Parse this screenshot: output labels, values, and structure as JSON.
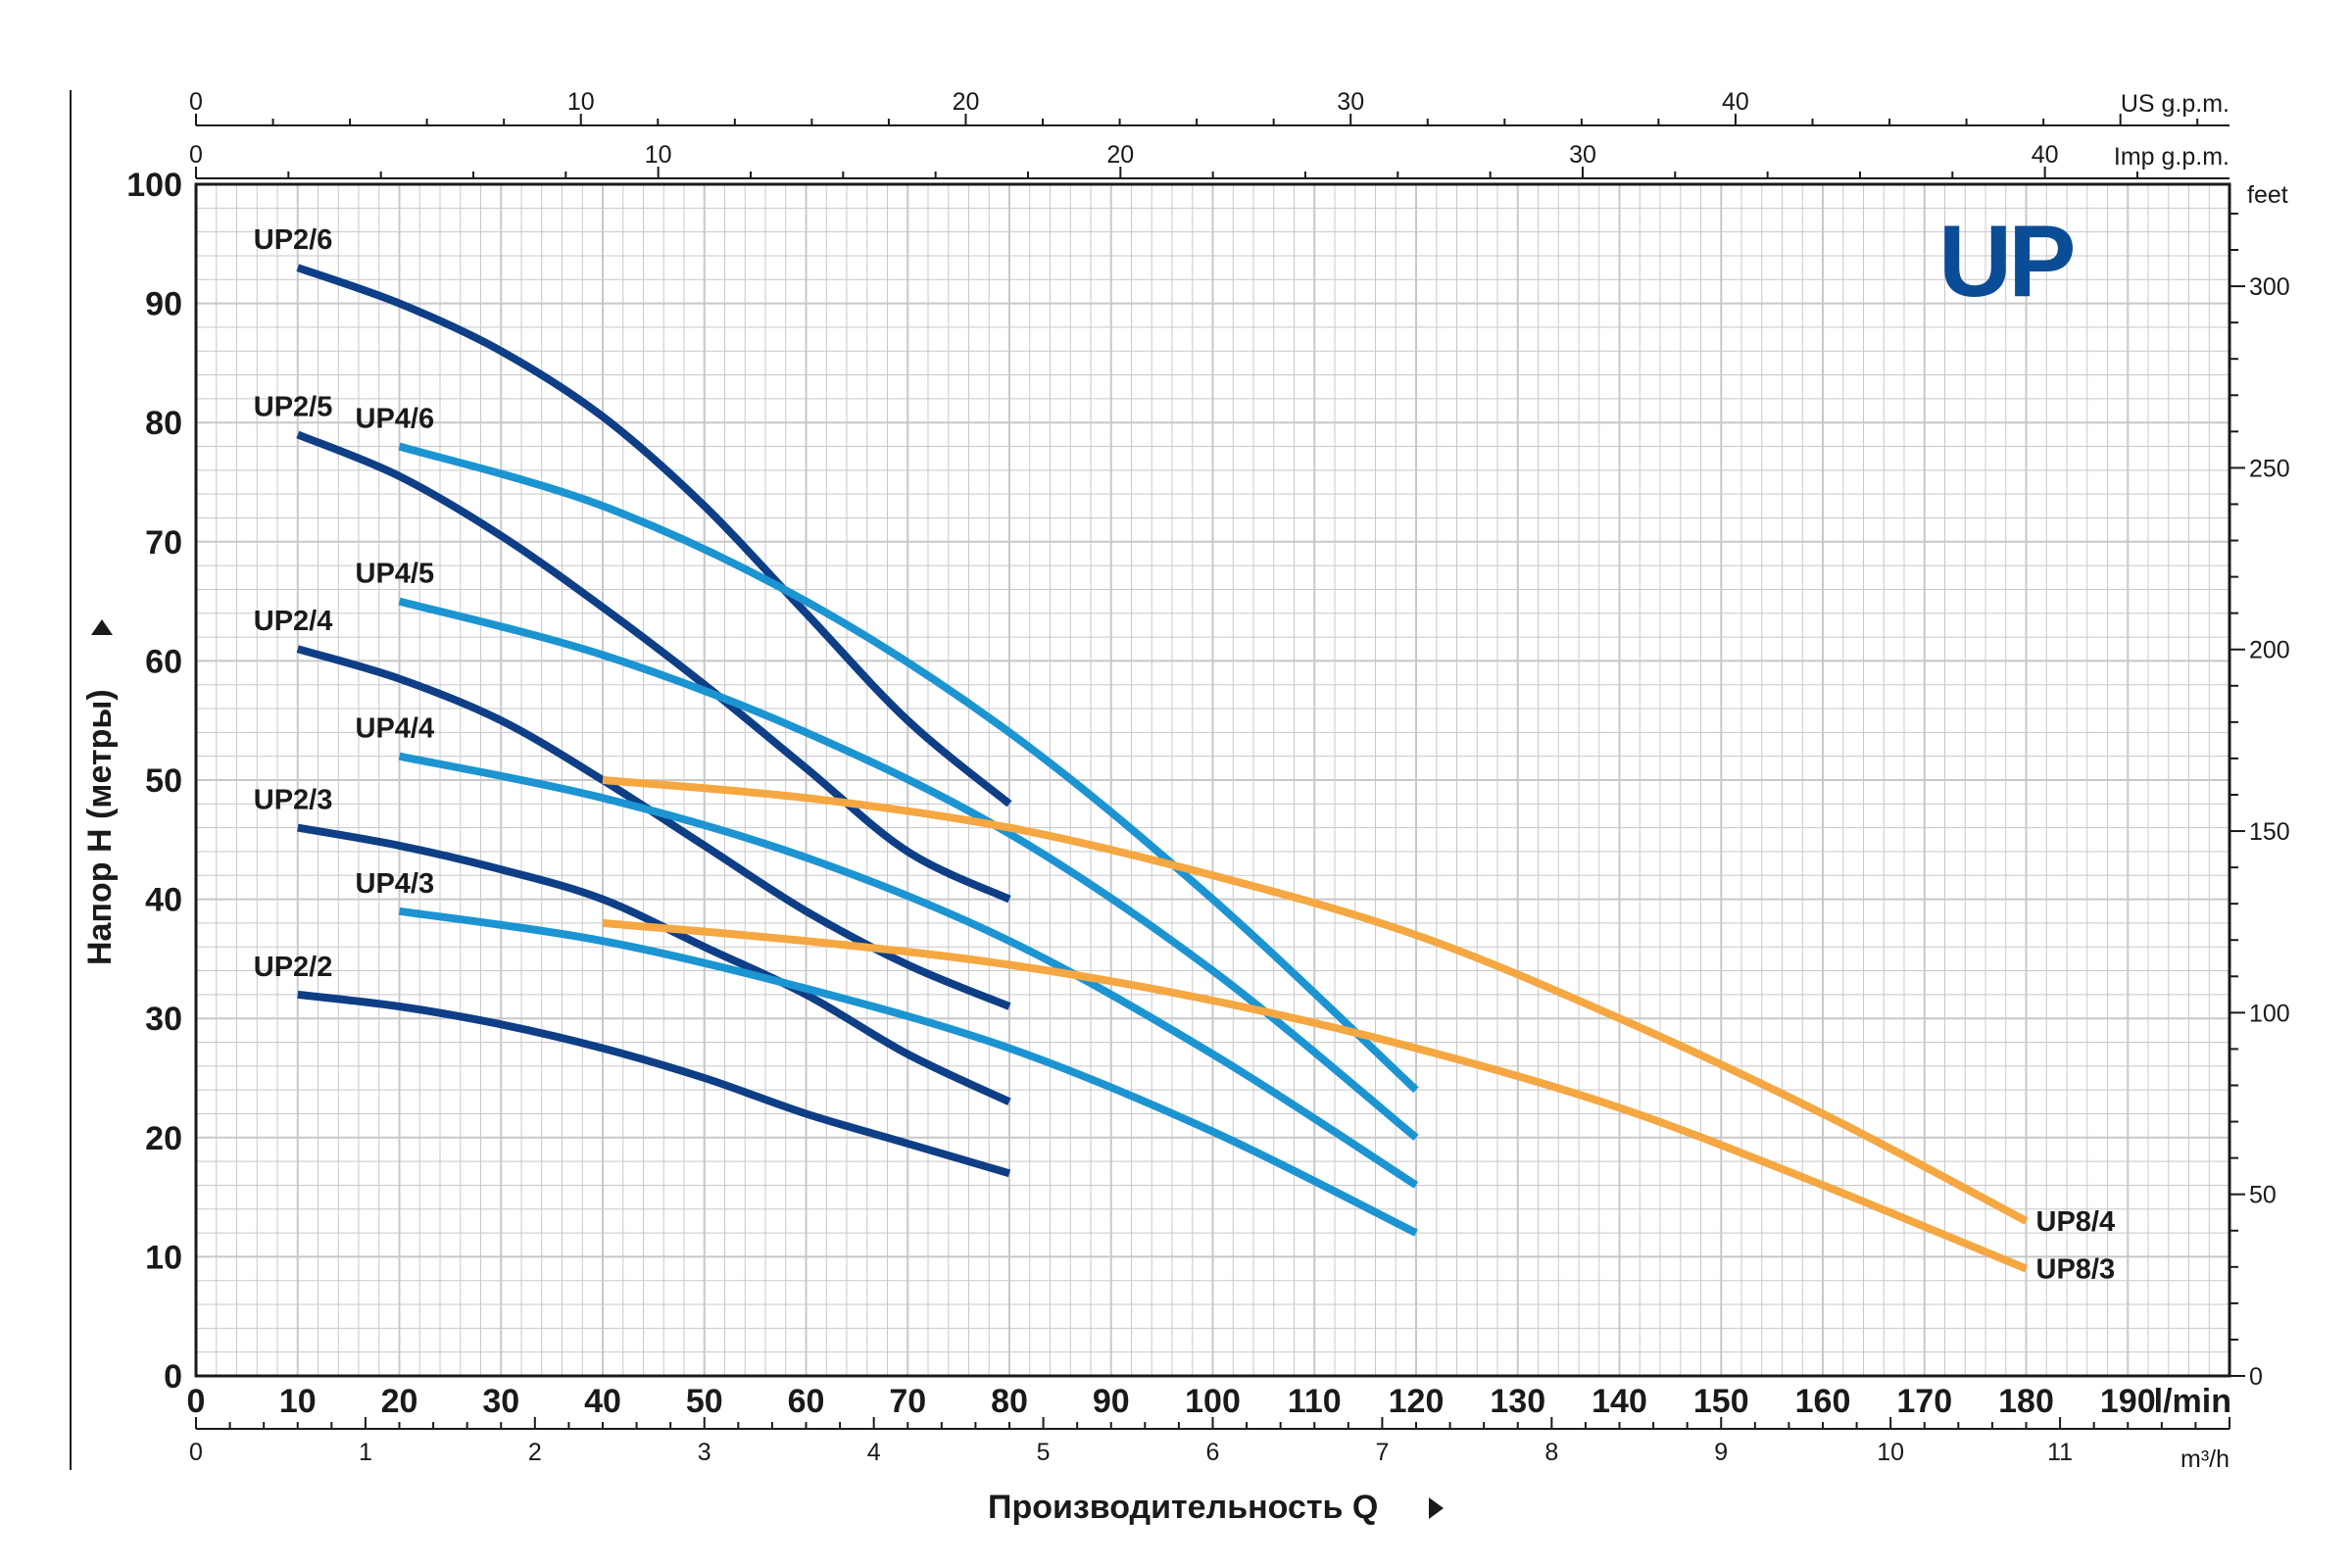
{
  "colors": {
    "up2": "#0e3e86",
    "up4": "#1c94d2",
    "up8": "#f5a742",
    "grid": "#c8c8c8",
    "frame": "#1a1a1a",
    "logo": "#0b4c96"
  },
  "logo_text": "UP",
  "chart_data": {
    "type": "line",
    "xlabel": "Производительность Q",
    "ylabel": "Напор H (метры)",
    "x_unit": "l/min",
    "xlim": [
      0,
      200
    ],
    "ylim": [
      0,
      100
    ],
    "x_ticks": [
      0,
      10,
      20,
      30,
      40,
      50,
      60,
      70,
      80,
      90,
      100,
      110,
      120,
      130,
      140,
      150,
      160,
      170,
      180,
      190
    ],
    "y_ticks": [
      0,
      10,
      20,
      30,
      40,
      50,
      60,
      70,
      80,
      90,
      100
    ],
    "secondary_axes": {
      "us_gpm": {
        "label": "US g.p.m.",
        "ticks": [
          0,
          10,
          20,
          30,
          40
        ]
      },
      "imp_gpm": {
        "label": "Imp g.p.m.",
        "ticks": [
          0,
          10,
          20,
          30,
          40
        ]
      },
      "feet": {
        "label": "feet",
        "ticks": [
          0,
          50,
          100,
          150,
          200,
          250,
          300
        ]
      },
      "m3h": {
        "label": "m³/h",
        "ticks": [
          0,
          1,
          2,
          3,
          4,
          5,
          6,
          7,
          8,
          9,
          10,
          11
        ]
      }
    },
    "series": [
      {
        "name": "UP2/6",
        "group": "up2",
        "x": [
          10,
          20,
          30,
          40,
          50,
          60,
          70,
          80
        ],
        "y": [
          93,
          90,
          86,
          80.5,
          73,
          64,
          55,
          48
        ]
      },
      {
        "name": "UP2/5",
        "group": "up2",
        "x": [
          10,
          20,
          30,
          40,
          50,
          60,
          70,
          80
        ],
        "y": [
          79,
          75.5,
          70.5,
          64.5,
          58,
          51,
          44,
          40
        ]
      },
      {
        "name": "UP2/4",
        "group": "up2",
        "x": [
          10,
          20,
          30,
          40,
          50,
          60,
          70,
          80
        ],
        "y": [
          61,
          58.5,
          55,
          50,
          44.5,
          39,
          34.5,
          31
        ]
      },
      {
        "name": "UP2/3",
        "group": "up2",
        "x": [
          10,
          20,
          30,
          40,
          50,
          60,
          70,
          80
        ],
        "y": [
          46,
          44.5,
          42.5,
          40,
          36,
          32,
          27,
          23
        ]
      },
      {
        "name": "UP2/2",
        "group": "up2",
        "x": [
          10,
          20,
          30,
          40,
          50,
          60,
          70,
          80
        ],
        "y": [
          32,
          31,
          29.5,
          27.5,
          25,
          22,
          19.5,
          17
        ]
      },
      {
        "name": "UP4/6",
        "group": "up4",
        "x": [
          20,
          40,
          60,
          80,
          100,
          120
        ],
        "y": [
          78,
          73,
          65,
          54,
          40,
          24
        ]
      },
      {
        "name": "UP4/5",
        "group": "up4",
        "x": [
          20,
          40,
          60,
          80,
          100,
          120
        ],
        "y": [
          65,
          60.5,
          54,
          45.5,
          34,
          20
        ]
      },
      {
        "name": "UP4/4",
        "group": "up4",
        "x": [
          20,
          40,
          60,
          80,
          100,
          120
        ],
        "y": [
          52,
          48.5,
          43.5,
          36.5,
          27,
          16
        ]
      },
      {
        "name": "UP4/3",
        "group": "up4",
        "x": [
          20,
          40,
          60,
          80,
          100,
          120
        ],
        "y": [
          39,
          36.5,
          32.5,
          27.5,
          20.5,
          12
        ]
      },
      {
        "name": "UP8/4",
        "group": "up8",
        "x": [
          40,
          60,
          80,
          100,
          120,
          140,
          160,
          180
        ],
        "y": [
          50,
          48.5,
          46,
          42,
          37,
          30,
          22,
          13
        ]
      },
      {
        "name": "UP8/3",
        "group": "up8",
        "x": [
          40,
          60,
          80,
          100,
          120,
          140,
          160,
          180
        ],
        "y": [
          38,
          36.5,
          34.5,
          31.5,
          27.5,
          22.5,
          16,
          9
        ]
      }
    ]
  }
}
